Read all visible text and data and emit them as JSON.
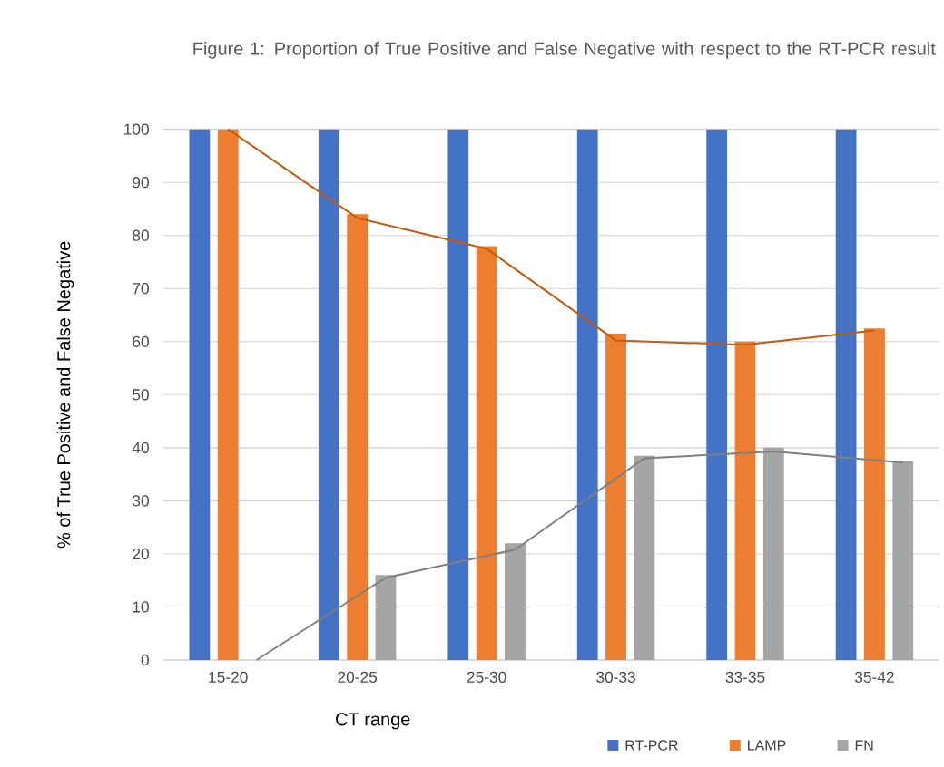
{
  "chart_data": {
    "type": "bar",
    "title": "Figure 1: Proportion of True Positive and False Negative with respect to the RT-PCR result",
    "xlabel": "CT range",
    "ylabel": "% of True Positive and False Negative",
    "categories": [
      "15-20",
      "20-25",
      "25-30",
      "30-33",
      "33-35",
      "35-42"
    ],
    "series": [
      {
        "name": "RT-PCR",
        "color": "#4472c4",
        "values": [
          100,
          100,
          100,
          100,
          100,
          100
        ]
      },
      {
        "name": "LAMP",
        "color": "#ed7d31",
        "values": [
          100,
          84,
          78,
          61.5,
          60,
          62.5
        ]
      },
      {
        "name": "FN",
        "color": "#a5a5a5",
        "values": [
          0,
          16,
          22,
          38.5,
          40,
          37.5
        ]
      },
      {
        "type": "line",
        "color": "#c55a11",
        "values": [
          100,
          83.3,
          77.5,
          60.2,
          59.4,
          62.1
        ]
      },
      {
        "type": "line",
        "color": "#7f7f7f",
        "values": [
          0,
          15.5,
          20.8,
          38,
          39.3,
          37.2
        ]
      }
    ],
    "ylim": [
      0,
      100
    ],
    "yticks": [
      0,
      10,
      20,
      30,
      40,
      50,
      60,
      70,
      80,
      90,
      100
    ],
    "grid": "y",
    "legend": "bottom right"
  }
}
